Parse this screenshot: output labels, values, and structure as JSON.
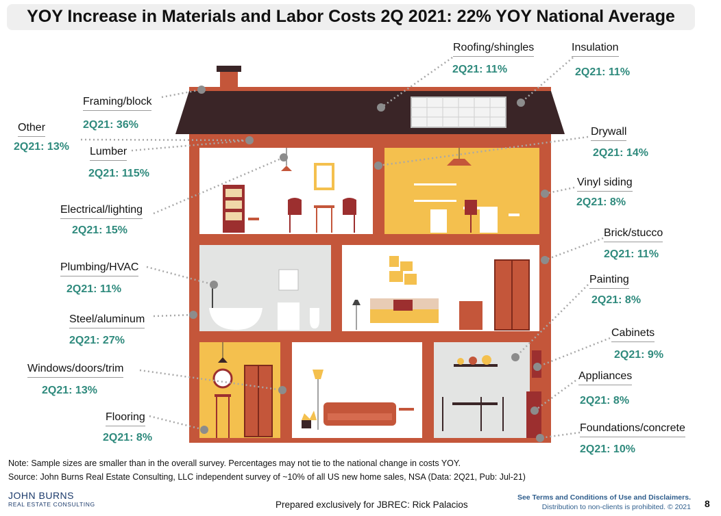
{
  "title": "YOY Increase in Materials and Labor Costs 2Q 2021: 22% YOY National Average",
  "colors": {
    "brick": "#c4563a",
    "roof": "#3a2527",
    "accent_text": "#2f8a7d",
    "yellow_room": "#f4c04e",
    "gray_room": "#e3e4e3",
    "white_room": "#ffffff"
  },
  "categories": [
    {
      "label": "Framing/block",
      "value": "2Q21: 36%"
    },
    {
      "label": "Other",
      "value": "2Q21: 13%"
    },
    {
      "label": "Lumber",
      "value": "2Q21: 115%"
    },
    {
      "label": "Electrical/lighting",
      "value": "2Q21: 15%"
    },
    {
      "label": "Plumbing/HVAC",
      "value": "2Q21: 11%"
    },
    {
      "label": "Steel/aluminum",
      "value": "2Q21: 27%"
    },
    {
      "label": "Windows/doors/trim",
      "value": "2Q21: 13%"
    },
    {
      "label": "Flooring",
      "value": "2Q21: 8%"
    },
    {
      "label": "Roofing/shingles",
      "value": "2Q21: 11%"
    },
    {
      "label": "Insulation",
      "value": "2Q21: 11%"
    },
    {
      "label": "Drywall",
      "value": "2Q21: 14%"
    },
    {
      "label": "Vinyl siding",
      "value": "2Q21: 8%"
    },
    {
      "label": "Brick/stucco",
      "value": "2Q21: 11%"
    },
    {
      "label": "Painting",
      "value": "2Q21: 8%"
    },
    {
      "label": "Cabinets",
      "value": "2Q21: 9%"
    },
    {
      "label": "Appliances",
      "value": "2Q21: 8%"
    },
    {
      "label": "Foundations/concrete",
      "value": "2Q21: 10%"
    }
  ],
  "note": "Note: Sample sizes are smaller than in the overall survey. Percentages may not tie to the national change in costs YOY.",
  "source": "Source: John Burns Real Estate Consulting, LLC independent survey of ~10% of all US new home sales, NSA (Data: 2Q21, Pub: Jul-21)",
  "logo": {
    "main": "JOHN  BURNS",
    "sub": "REAL ESTATE CONSULTING"
  },
  "prepared": "Prepared exclusively for JBREC: Rick Palacios",
  "terms_line1": "See Terms and Conditions of Use and Disclaimers.",
  "terms_line2": "Distribution to non-clients is prohibited. © 2021",
  "page_number": "8"
}
